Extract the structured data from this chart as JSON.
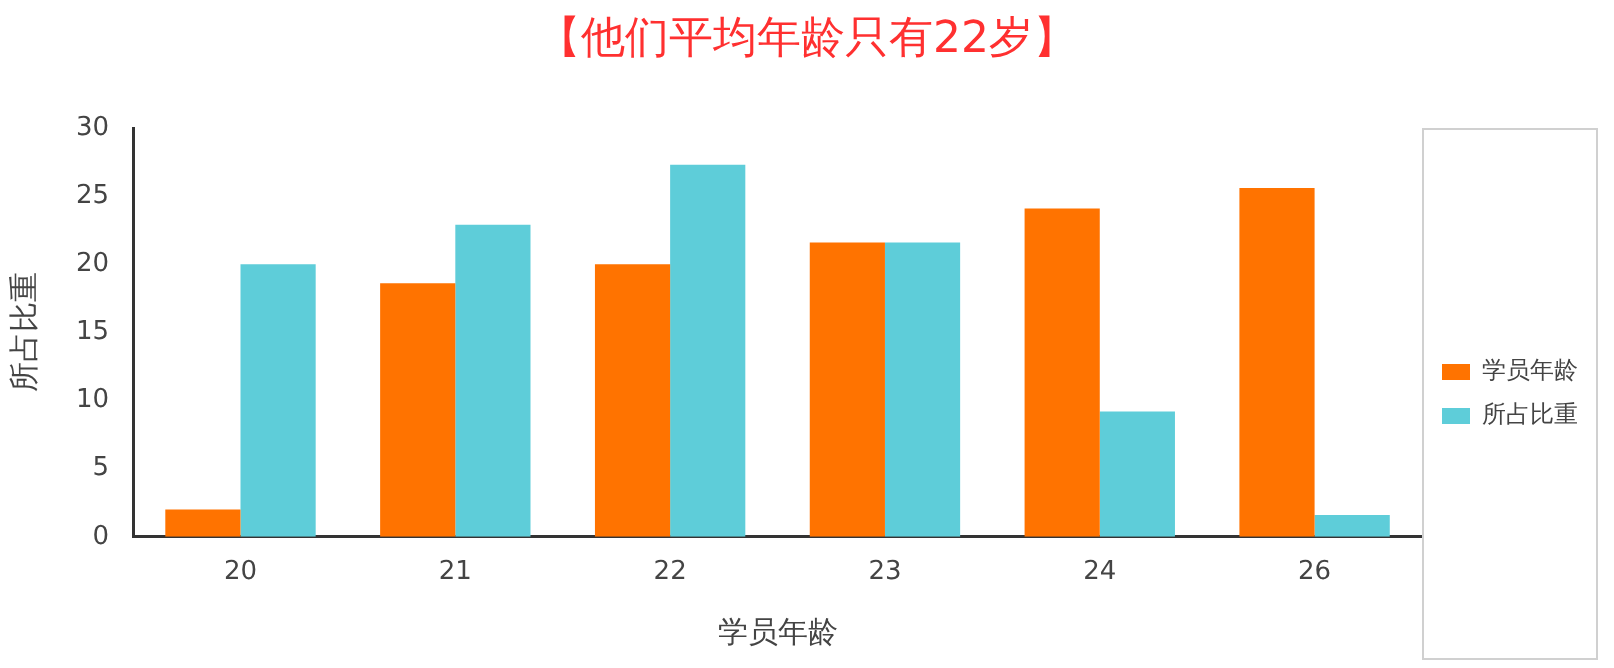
{
  "chart_data": {
    "type": "bar",
    "title": "【他们平均年龄只有22岁】",
    "xlabel": "学员年龄",
    "ylabel": "所占比重",
    "categories": [
      "20",
      "21",
      "22",
      "23",
      "24",
      "26"
    ],
    "series": [
      {
        "name": "学员年龄",
        "color": "#ff7300",
        "values": [
          2,
          18.6,
          20,
          21.6,
          24.1,
          25.6
        ]
      },
      {
        "name": "所占比重",
        "color": "#5ecdd9",
        "values": [
          20,
          22.9,
          27.3,
          21.6,
          9.2,
          1.6
        ]
      }
    ],
    "ylim": [
      0,
      30
    ],
    "yticks": [
      0,
      5,
      10,
      15,
      20,
      25,
      30
    ],
    "grid": false,
    "legend": "right"
  }
}
